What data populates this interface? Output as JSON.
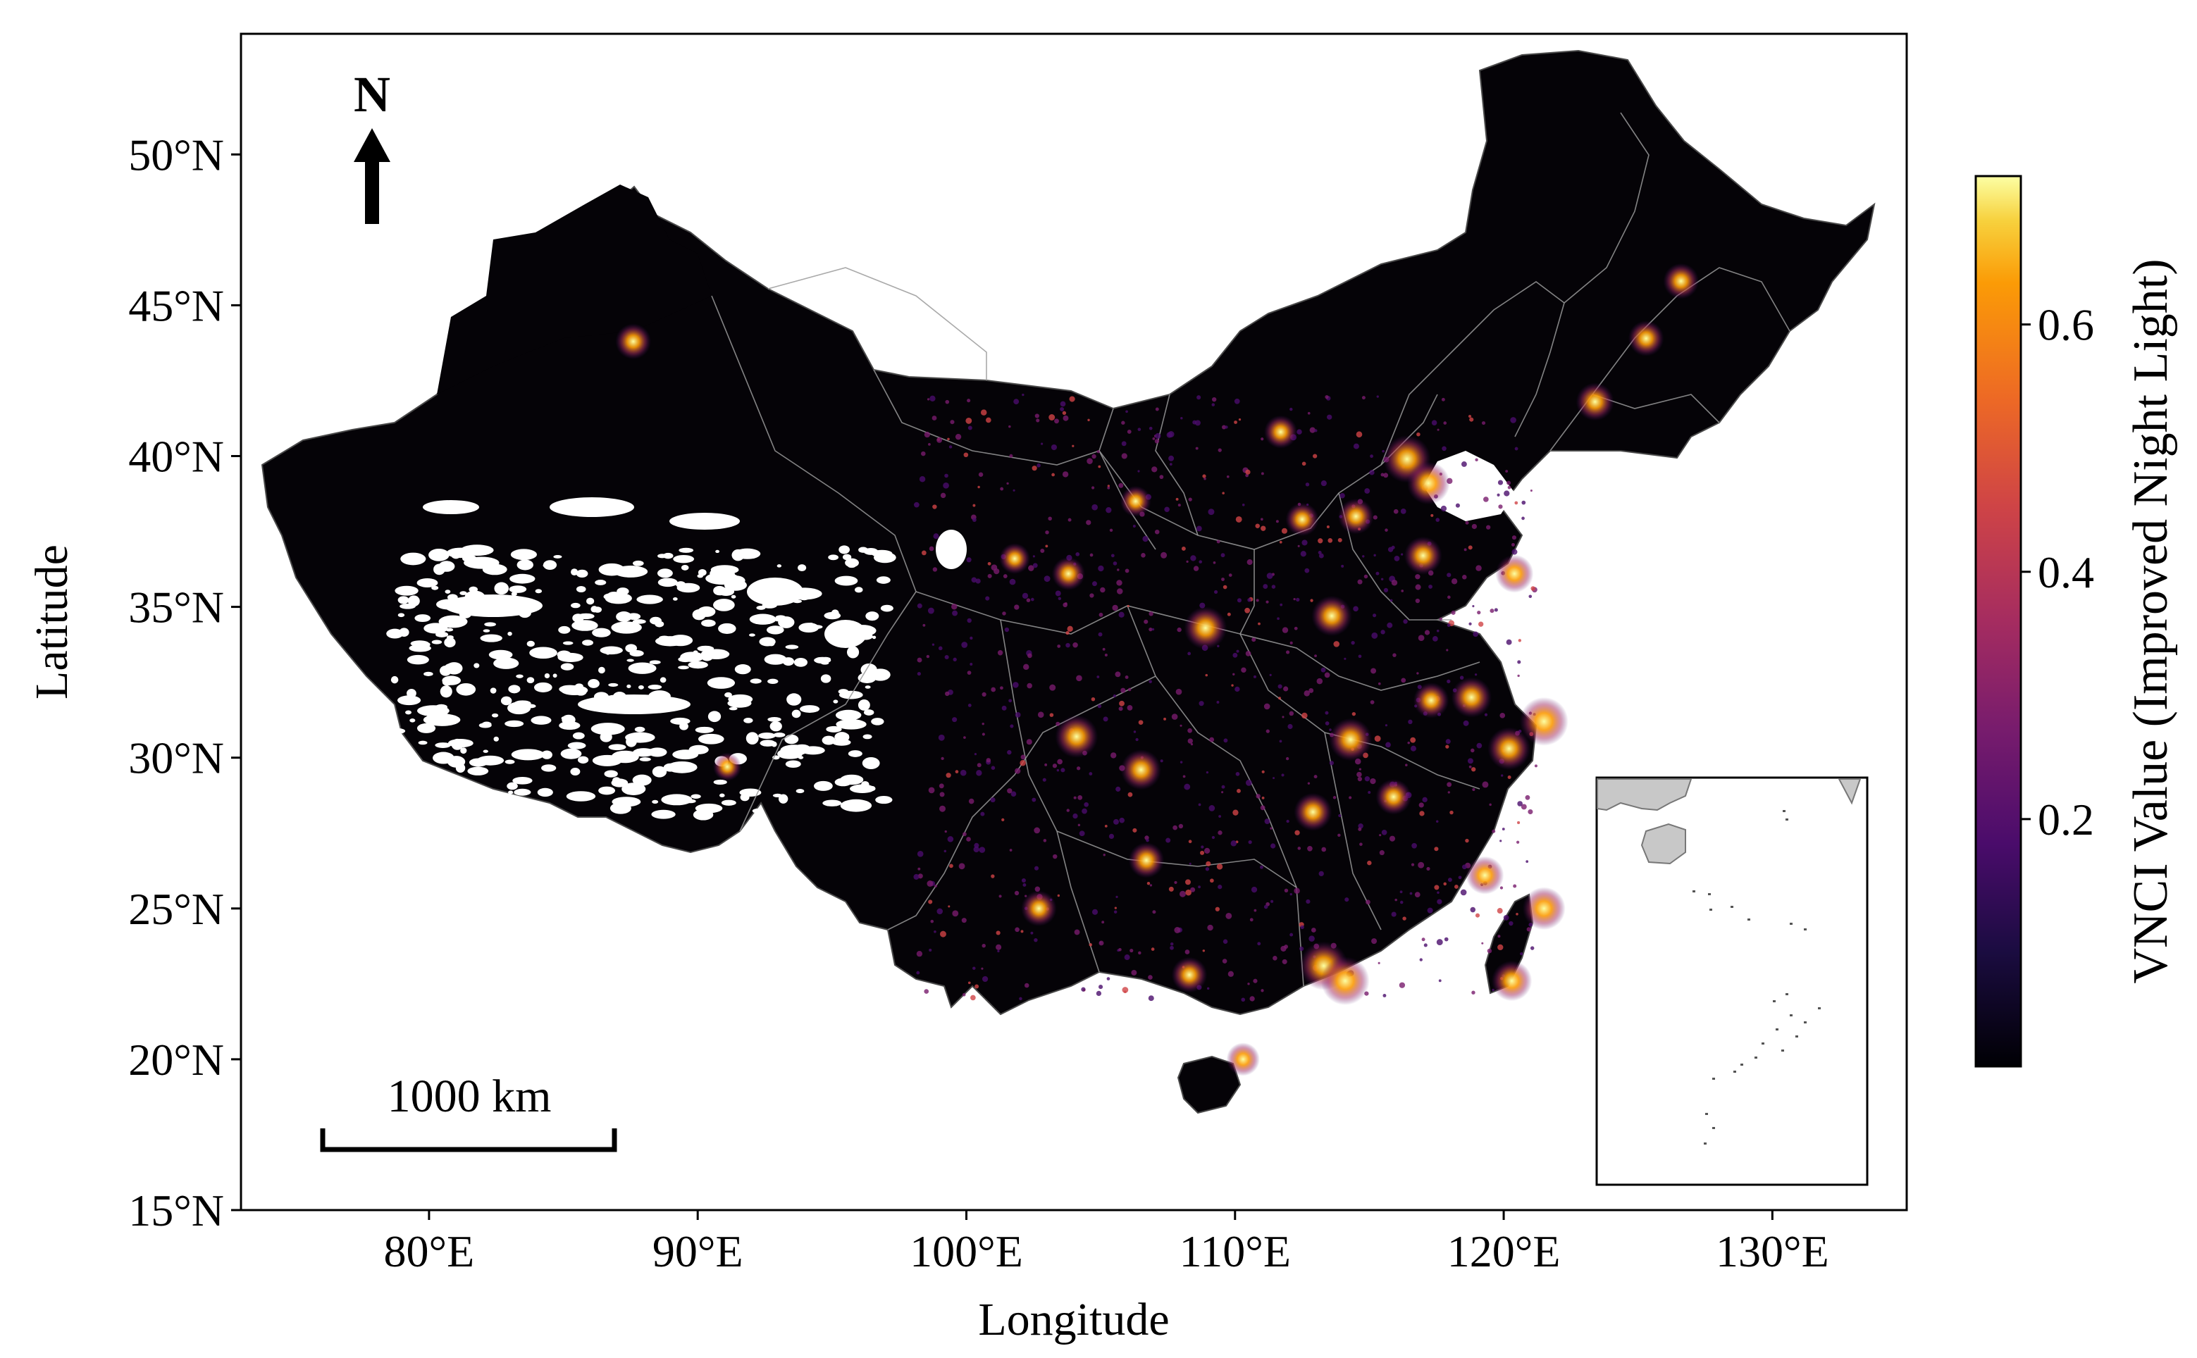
{
  "map": {
    "xlabel": "Longitude",
    "ylabel": "Latitude",
    "x_ticks": [
      "80°E",
      "90°E",
      "100°E",
      "110°E",
      "120°E",
      "130°E"
    ],
    "x_tick_values": [
      80,
      90,
      100,
      110,
      120,
      130
    ],
    "y_ticks": [
      "15°N",
      "20°N",
      "25°N",
      "30°N",
      "35°N",
      "40°N",
      "45°N",
      "50°N"
    ],
    "y_tick_values": [
      15,
      20,
      25,
      30,
      35,
      40,
      45,
      50
    ],
    "xlim": [
      73,
      135
    ],
    "ylim": [
      15,
      54
    ],
    "north_label": "N",
    "scale_bar_label": "1000 km",
    "land_color": "#050307",
    "boundary_color": "#9a9a9a",
    "inset_land_color": "#c8c8c8"
  },
  "colorbar": {
    "label": "VNCI Value (Improved Night Light)",
    "colormap": "inferno",
    "ticks": [
      "0.2",
      "0.4",
      "0.6"
    ],
    "tick_values": [
      0.2,
      0.4,
      0.6
    ],
    "range": [
      0.0,
      0.72
    ]
  },
  "bright_spots": [
    {
      "lon": 116.4,
      "lat": 39.9,
      "v": 0.7
    },
    {
      "lon": 117.2,
      "lat": 39.1,
      "v": 0.6
    },
    {
      "lon": 121.5,
      "lat": 31.2,
      "v": 0.72
    },
    {
      "lon": 120.2,
      "lat": 30.3,
      "v": 0.6
    },
    {
      "lon": 118.8,
      "lat": 32.0,
      "v": 0.55
    },
    {
      "lon": 113.3,
      "lat": 23.1,
      "v": 0.72
    },
    {
      "lon": 114.1,
      "lat": 22.6,
      "v": 0.72
    },
    {
      "lon": 104.1,
      "lat": 30.7,
      "v": 0.6
    },
    {
      "lon": 106.5,
      "lat": 29.6,
      "v": 0.55
    },
    {
      "lon": 108.9,
      "lat": 34.3,
      "v": 0.6
    },
    {
      "lon": 114.3,
      "lat": 30.6,
      "v": 0.6
    },
    {
      "lon": 113.6,
      "lat": 34.7,
      "v": 0.55
    },
    {
      "lon": 117.0,
      "lat": 36.7,
      "v": 0.5
    },
    {
      "lon": 120.4,
      "lat": 36.1,
      "v": 0.5
    },
    {
      "lon": 123.4,
      "lat": 41.8,
      "v": 0.5
    },
    {
      "lon": 125.3,
      "lat": 43.9,
      "v": 0.45
    },
    {
      "lon": 126.6,
      "lat": 45.8,
      "v": 0.45
    },
    {
      "lon": 112.9,
      "lat": 28.2,
      "v": 0.5
    },
    {
      "lon": 115.9,
      "lat": 28.7,
      "v": 0.45
    },
    {
      "lon": 119.3,
      "lat": 26.1,
      "v": 0.5
    },
    {
      "lon": 102.7,
      "lat": 25.0,
      "v": 0.45
    },
    {
      "lon": 106.7,
      "lat": 26.6,
      "v": 0.45
    },
    {
      "lon": 108.3,
      "lat": 22.8,
      "v": 0.45
    },
    {
      "lon": 87.6,
      "lat": 43.8,
      "v": 0.45
    },
    {
      "lon": 103.8,
      "lat": 36.1,
      "v": 0.4
    },
    {
      "lon": 101.8,
      "lat": 36.6,
      "v": 0.35
    },
    {
      "lon": 111.7,
      "lat": 40.8,
      "v": 0.4
    },
    {
      "lon": 112.5,
      "lat": 37.9,
      "v": 0.4
    },
    {
      "lon": 114.5,
      "lat": 38.0,
      "v": 0.45
    },
    {
      "lon": 117.3,
      "lat": 31.9,
      "v": 0.45
    },
    {
      "lon": 121.5,
      "lat": 25.0,
      "v": 0.6
    },
    {
      "lon": 120.3,
      "lat": 22.6,
      "v": 0.55
    },
    {
      "lon": 110.3,
      "lat": 20.0,
      "v": 0.4
    },
    {
      "lon": 106.3,
      "lat": 38.5,
      "v": 0.35
    },
    {
      "lon": 91.1,
      "lat": 29.7,
      "v": 0.3
    }
  ]
}
